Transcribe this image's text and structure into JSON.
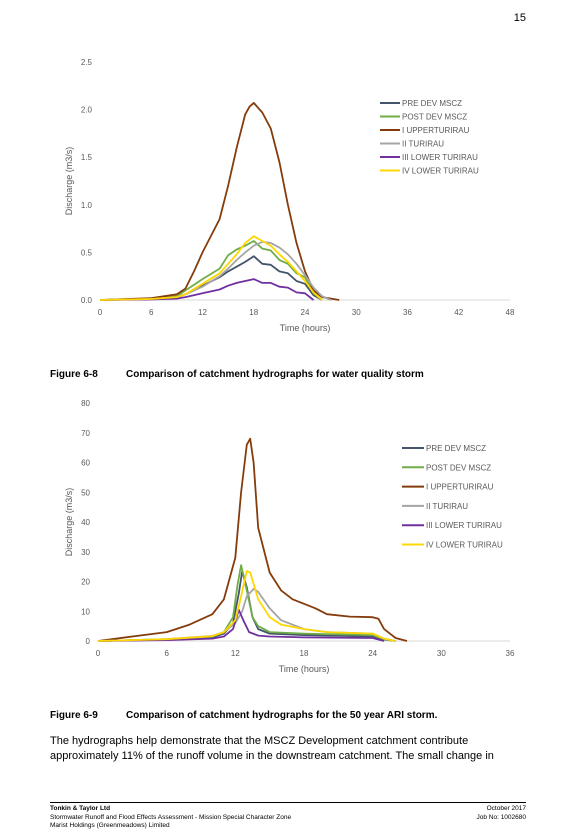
{
  "page_number": "15",
  "figures": [
    {
      "number": "Figure 6-8",
      "caption": "Comparison of catchment hydrographs for water quality storm"
    },
    {
      "number": "Figure 6-9",
      "caption": "Comparison of catchment hydrographs for the 50 year ARI storm."
    }
  ],
  "body_text": "The hydrographs help demonstrate that the MSCZ Development catchment contribute approximately 11% of the runoff volume in the downstream catchment.  The small change in",
  "footer": {
    "company": "Tonkin & Taylor Ltd",
    "report": "Stormwater Runoff and Flood Effects Assessment - Mission Special Character Zone",
    "client": "Marist Holdings (Greenmeadows) Limited",
    "date": "October 2017",
    "job": "Job No: 1002680"
  },
  "chart_data": [
    {
      "type": "line",
      "xlabel": "Time (hours)",
      "ylabel": "Discharge (m3/s)",
      "xlim": [
        0,
        48
      ],
      "ylim": [
        0,
        2.5
      ],
      "xticks": [
        "0",
        "6",
        "12",
        "18",
        "24",
        "30",
        "36",
        "42",
        "48"
      ],
      "yticks": [
        "0.0",
        "0.5",
        "1.0",
        "1.5",
        "2.0",
        "2.5"
      ],
      "grid": false,
      "legend": "right",
      "series": [
        {
          "name": "PRE DEV MSCZ",
          "color": "#44546a",
          "x": [
            0,
            6,
            9,
            10,
            12,
            14,
            15,
            16,
            17,
            18,
            19,
            20,
            21,
            22,
            23,
            24,
            25,
            26
          ],
          "y": [
            0,
            0.01,
            0.03,
            0.06,
            0.15,
            0.24,
            0.3,
            0.35,
            0.4,
            0.46,
            0.38,
            0.37,
            0.3,
            0.28,
            0.2,
            0.17,
            0.05,
            0
          ]
        },
        {
          "name": "POST DEV MSCZ",
          "color": "#70ad47",
          "x": [
            0,
            6,
            9,
            10,
            12,
            14,
            15,
            16,
            17,
            18,
            19,
            20,
            21,
            22,
            23,
            24,
            25,
            26
          ],
          "y": [
            0,
            0.01,
            0.04,
            0.1,
            0.22,
            0.33,
            0.47,
            0.53,
            0.57,
            0.62,
            0.54,
            0.52,
            0.42,
            0.38,
            0.28,
            0.24,
            0.07,
            0
          ]
        },
        {
          "name": "I UPPERTURIRAU",
          "color": "#843c0c",
          "x": [
            0,
            6,
            9,
            10,
            11,
            12,
            14,
            15,
            16,
            17,
            17.5,
            18,
            18.5,
            19,
            20,
            21,
            22,
            23,
            24,
            25,
            26,
            28
          ],
          "y": [
            0,
            0.02,
            0.06,
            0.12,
            0.3,
            0.5,
            0.85,
            1.2,
            1.6,
            1.95,
            2.03,
            2.07,
            2.02,
            1.97,
            1.8,
            1.45,
            1.0,
            0.6,
            0.3,
            0.1,
            0.03,
            0
          ]
        },
        {
          "name": "II TURIRAU",
          "color": "#a5a5a5",
          "x": [
            0,
            6,
            9,
            10,
            12,
            14,
            15,
            16,
            17,
            18,
            19,
            20,
            21,
            22,
            23,
            24,
            25,
            26,
            27
          ],
          "y": [
            0,
            0.01,
            0.03,
            0.06,
            0.14,
            0.25,
            0.33,
            0.42,
            0.5,
            0.57,
            0.61,
            0.6,
            0.55,
            0.48,
            0.38,
            0.26,
            0.13,
            0.04,
            0
          ]
        },
        {
          "name": "III LOWER TURIRAU",
          "color": "#7030a0",
          "x": [
            0,
            6,
            9,
            10,
            12,
            14,
            15,
            16,
            17,
            18,
            19,
            20,
            21,
            22,
            23,
            24,
            25
          ],
          "y": [
            0,
            0.005,
            0.015,
            0.03,
            0.07,
            0.11,
            0.15,
            0.18,
            0.2,
            0.22,
            0.18,
            0.18,
            0.14,
            0.13,
            0.08,
            0.07,
            0
          ]
        },
        {
          "name": "IV LOWER TURIRAU",
          "color": "#ffd700",
          "x": [
            0,
            6,
            9,
            10,
            12,
            14,
            15,
            16,
            17,
            18,
            19,
            20,
            21,
            22,
            23,
            24,
            25,
            26
          ],
          "y": [
            0,
            0.01,
            0.03,
            0.06,
            0.17,
            0.28,
            0.38,
            0.48,
            0.6,
            0.67,
            0.62,
            0.57,
            0.48,
            0.4,
            0.3,
            0.2,
            0.08,
            0
          ]
        }
      ]
    },
    {
      "type": "line",
      "xlabel": "Time (hours)",
      "ylabel": "Discharge (m3/s)",
      "xlim": [
        0,
        36
      ],
      "ylim": [
        0,
        80
      ],
      "xticks": [
        "0",
        "6",
        "12",
        "18",
        "24",
        "30",
        "36"
      ],
      "yticks": [
        "0",
        "10",
        "20",
        "30",
        "40",
        "50",
        "60",
        "70",
        "80"
      ],
      "grid": false,
      "legend": "right",
      "series": [
        {
          "name": "PRE DEV MSCZ",
          "color": "#44546a",
          "x": [
            0,
            6,
            10,
            11,
            11.8,
            12.3,
            12.6,
            13,
            13.5,
            14,
            15,
            18,
            24,
            25,
            26
          ],
          "y": [
            0,
            0.5,
            1.2,
            2.5,
            6,
            16,
            23.5,
            18,
            8,
            4,
            2.5,
            2,
            1.5,
            0.5,
            0
          ]
        },
        {
          "name": "POST DEV MSCZ",
          "color": "#70ad47",
          "x": [
            0,
            6,
            10,
            11,
            11.8,
            12.2,
            12.5,
            13,
            13.5,
            14,
            15,
            18,
            24,
            25,
            26
          ],
          "y": [
            0,
            0.6,
            1.5,
            3,
            8,
            19,
            25.5,
            17,
            8,
            5,
            3,
            2.5,
            2,
            0.6,
            0
          ]
        },
        {
          "name": "I UPPERTURIRAU",
          "color": "#843c0c",
          "x": [
            0,
            3,
            6,
            8,
            10,
            11,
            12,
            12.5,
            13,
            13.3,
            13.6,
            14,
            15,
            16,
            17,
            18,
            19,
            20,
            22,
            24,
            24.5,
            25,
            26,
            27
          ],
          "y": [
            0,
            1.5,
            3,
            5.5,
            9,
            14,
            28,
            50,
            66,
            68,
            60,
            38,
            23,
            17,
            14,
            12.5,
            11,
            9,
            8.2,
            8,
            7.5,
            4,
            1,
            0
          ]
        },
        {
          "name": "II TURIRAU",
          "color": "#a5a5a5",
          "x": [
            0,
            6,
            10,
            11,
            12,
            12.6,
            13,
            13.6,
            14,
            15,
            16,
            18,
            20,
            24,
            25,
            26
          ],
          "y": [
            0,
            0.6,
            1.7,
            3,
            6,
            10,
            15,
            17.5,
            16.5,
            11,
            7,
            4,
            3,
            2.5,
            0.8,
            0
          ]
        },
        {
          "name": "III LOWER TURIRAU",
          "color": "#7030a0",
          "x": [
            0,
            6,
            10,
            11,
            11.8,
            12.3,
            12.7,
            13.2,
            14,
            15,
            18,
            24,
            25
          ],
          "y": [
            0,
            0.3,
            0.8,
            1.5,
            4,
            10.5,
            7,
            3,
            1.8,
            1.5,
            1.2,
            1,
            0
          ]
        },
        {
          "name": "IV LOWER TURIRAU",
          "color": "#ffd700",
          "x": [
            0,
            6,
            10,
            11,
            12,
            12.5,
            13,
            13.3,
            14,
            15,
            16,
            18,
            20,
            24,
            25,
            26
          ],
          "y": [
            0,
            0.6,
            1.6,
            3,
            7,
            15,
            23.5,
            23,
            14,
            8,
            5.5,
            4,
            3,
            2.5,
            0.8,
            0
          ]
        }
      ]
    }
  ]
}
